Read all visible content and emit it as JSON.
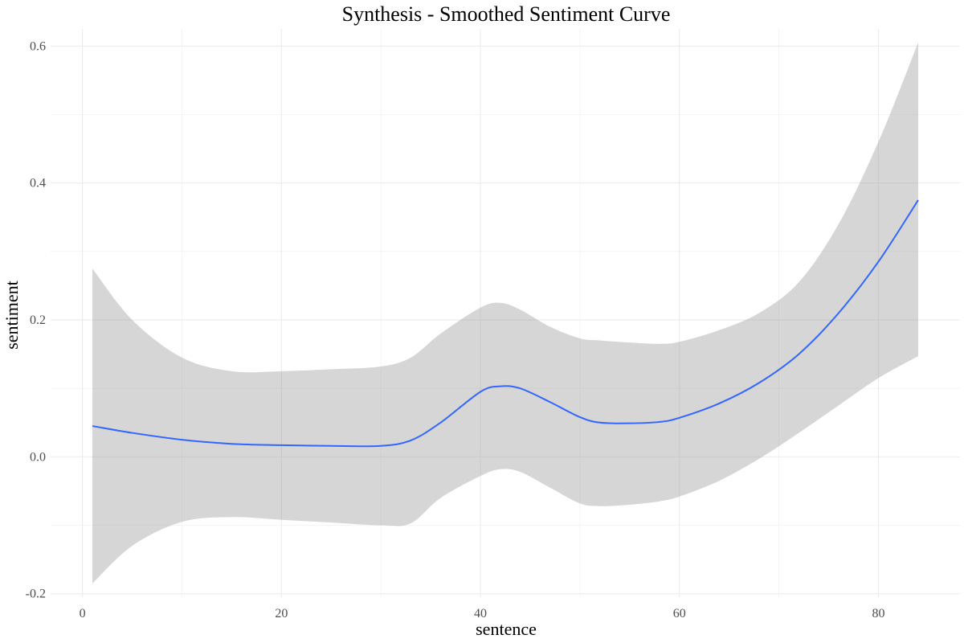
{
  "chart_data": {
    "type": "line",
    "title": "Synthesis - Smoothed Sentiment Curve",
    "xlabel": "sentence",
    "ylabel": "sentiment",
    "xlim": [
      -3.2,
      88.2
    ],
    "ylim": [
      -0.205,
      0.625
    ],
    "x_ticks": [
      {
        "value": 0,
        "label": "0"
      },
      {
        "value": 20,
        "label": "20"
      },
      {
        "value": 40,
        "label": "40"
      },
      {
        "value": 60,
        "label": "60"
      },
      {
        "value": 80,
        "label": "80"
      }
    ],
    "x_minor_ticks": [
      10,
      30,
      50,
      70
    ],
    "y_ticks": [
      {
        "value": -0.2,
        "label": "-0.2"
      },
      {
        "value": 0.0,
        "label": "0.0"
      },
      {
        "value": 0.2,
        "label": "0.2"
      },
      {
        "value": 0.4,
        "label": "0.4"
      },
      {
        "value": 0.6,
        "label": "0.6"
      }
    ],
    "y_minor_ticks": [
      -0.1,
      0.1,
      0.3,
      0.5
    ],
    "grid": true,
    "legend": "none",
    "colors": {
      "line": "#3366ff",
      "ribbon": "#999999",
      "grid": "#ebebeb"
    },
    "series": [
      {
        "x": [
          1,
          5,
          10,
          15,
          20,
          25,
          30,
          33,
          36,
          40,
          42,
          44,
          47,
          50,
          52,
          55,
          58,
          60,
          64,
          68,
          72,
          76,
          80,
          84
        ],
        "y": [
          0.045,
          0.035,
          0.025,
          0.019,
          0.017,
          0.016,
          0.016,
          0.024,
          0.05,
          0.095,
          0.103,
          0.1,
          0.08,
          0.058,
          0.05,
          0.049,
          0.051,
          0.057,
          0.078,
          0.108,
          0.15,
          0.21,
          0.285,
          0.375
        ],
        "ymin": [
          -0.185,
          -0.13,
          -0.095,
          -0.088,
          -0.092,
          -0.096,
          -0.1,
          -0.097,
          -0.06,
          -0.028,
          -0.018,
          -0.022,
          -0.045,
          -0.068,
          -0.072,
          -0.07,
          -0.065,
          -0.058,
          -0.035,
          -0.003,
          0.035,
          0.075,
          0.115,
          0.147
        ],
        "ymax": [
          0.275,
          0.2,
          0.145,
          0.125,
          0.125,
          0.128,
          0.132,
          0.145,
          0.18,
          0.218,
          0.225,
          0.215,
          0.19,
          0.173,
          0.17,
          0.167,
          0.165,
          0.168,
          0.185,
          0.21,
          0.255,
          0.34,
          0.46,
          0.605
        ]
      }
    ]
  }
}
